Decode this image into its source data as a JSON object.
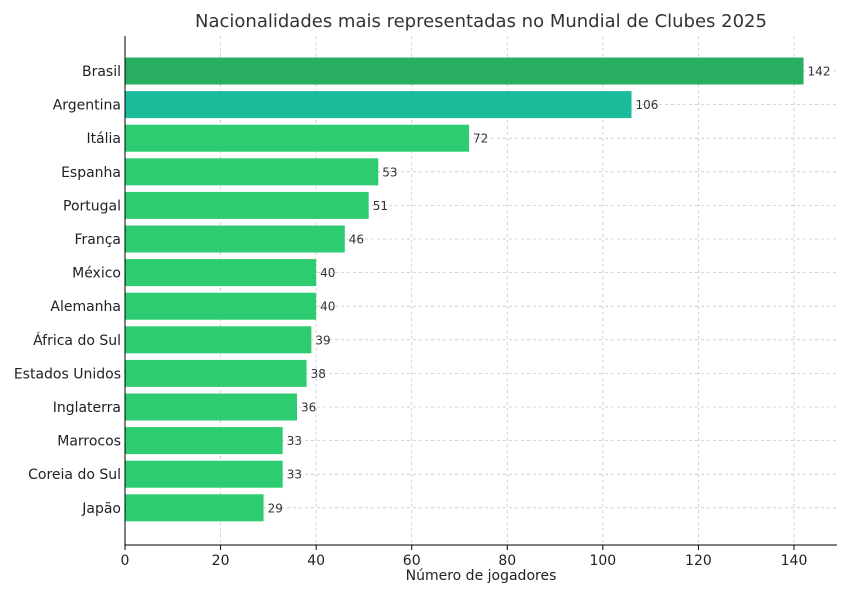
{
  "chart_data": {
    "type": "bar",
    "orientation": "horizontal",
    "title": "Nacionalidades mais representadas no Mundial de Clubes 2025",
    "xlabel": "Número de jogadores",
    "ylabel": "",
    "categories": [
      "Brasil",
      "Argentina",
      "Itália",
      "Espanha",
      "Portugal",
      "França",
      "México",
      "Alemanha",
      "África do Sul",
      "Estados Unidos",
      "Inglaterra",
      "Marrocos",
      "Coreia do Sul",
      "Japão"
    ],
    "values": [
      142,
      106,
      72,
      53,
      51,
      46,
      40,
      40,
      39,
      38,
      36,
      33,
      33,
      29
    ],
    "value_labels": [
      "142",
      "106",
      "72",
      "53",
      "51",
      "46",
      "40",
      "40",
      "39",
      "38",
      "36",
      "33",
      "33",
      "29"
    ],
    "bar_colors": [
      "#27ae60",
      "#1abc9c",
      "#2ecc71",
      "#2ecc71",
      "#2ecc71",
      "#2ecc71",
      "#2ecc71",
      "#2ecc71",
      "#2ecc71",
      "#2ecc71",
      "#2ecc71",
      "#2ecc71",
      "#2ecc71",
      "#2ecc71"
    ],
    "xlim": [
      0,
      149
    ],
    "xticks": [
      0,
      20,
      40,
      60,
      80,
      100,
      120,
      140
    ],
    "xtick_labels": [
      "0",
      "20",
      "40",
      "60",
      "80",
      "100",
      "120",
      "140"
    ],
    "grid": true
  }
}
